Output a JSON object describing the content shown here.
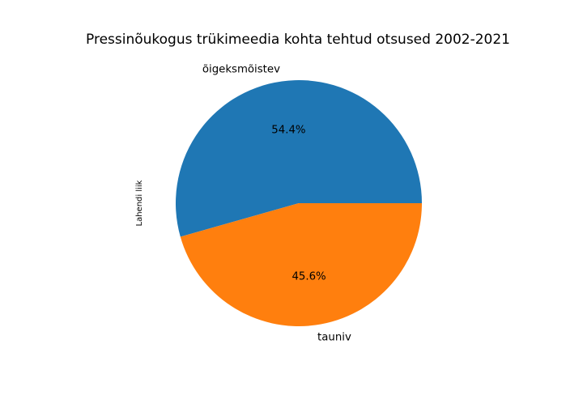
{
  "chart_data": {
    "type": "pie",
    "title": "Pressinõukogus trükimeedia kohta tehtud otsused 2002-2021",
    "ylabel": "Lahendi liik",
    "categories": [
      "õigeksmõistev",
      "tauniv"
    ],
    "values": [
      54.4,
      45.6
    ],
    "value_labels": [
      "54.4%",
      "45.6%"
    ],
    "colors": [
      "#1f77b4",
      "#ff7f0e"
    ]
  }
}
